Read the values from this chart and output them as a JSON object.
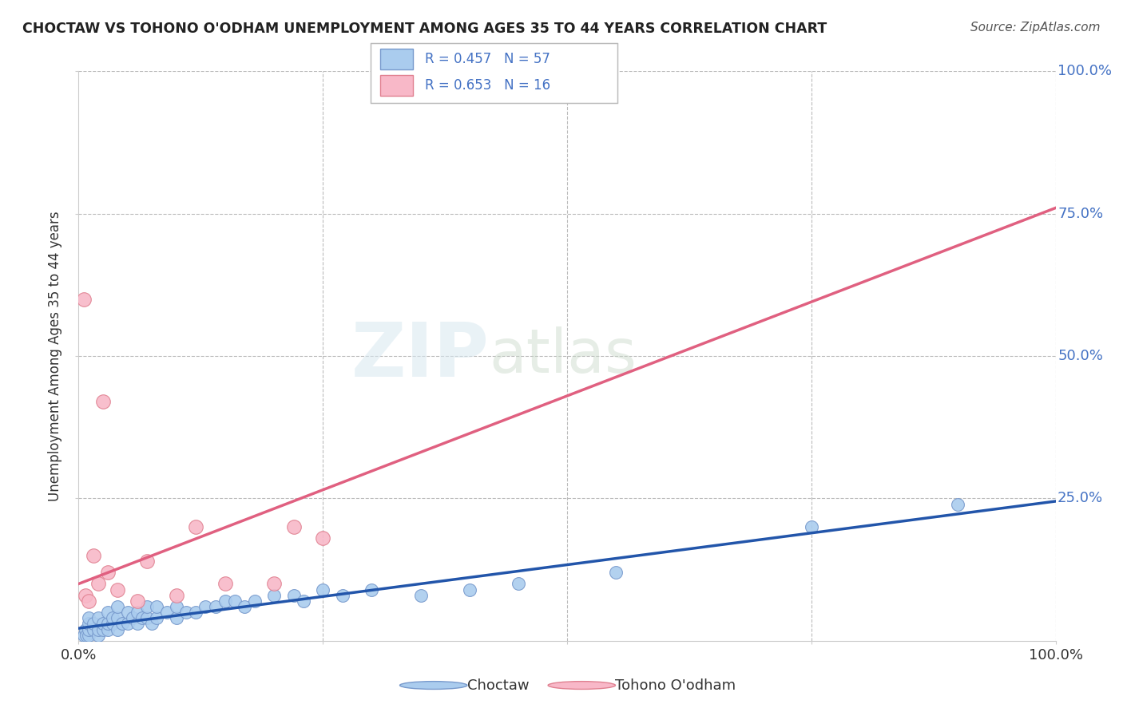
{
  "title": "CHOCTAW VS TOHONO O'ODHAM UNEMPLOYMENT AMONG AGES 35 TO 44 YEARS CORRELATION CHART",
  "source": "Source: ZipAtlas.com",
  "ylabel": "Unemployment Among Ages 35 to 44 years",
  "xlim": [
    0.0,
    1.0
  ],
  "ylim": [
    0.0,
    1.0
  ],
  "choctaw_color": "#aaccee",
  "choctaw_edge": "#7799cc",
  "tohono_color": "#f8b8c8",
  "tohono_edge": "#e08090",
  "choctaw_line_color": "#2255aa",
  "tohono_line_color": "#e06080",
  "choctaw_R": 0.457,
  "choctaw_N": 57,
  "tohono_R": 0.653,
  "tohono_N": 16,
  "legend_label_choctaw": "Choctaw",
  "legend_label_tohono": "Tohono O'odham",
  "watermark_zip": "ZIP",
  "watermark_atlas": "atlas",
  "background_color": "#ffffff",
  "grid_color": "#bbbbbb",
  "title_color": "#222222",
  "source_color": "#555555",
  "tick_color": "#4472c4",
  "ylabel_color": "#333333",
  "choctaw_x": [
    0.005,
    0.007,
    0.008,
    0.01,
    0.01,
    0.01,
    0.01,
    0.015,
    0.015,
    0.02,
    0.02,
    0.02,
    0.025,
    0.025,
    0.03,
    0.03,
    0.03,
    0.035,
    0.035,
    0.04,
    0.04,
    0.04,
    0.045,
    0.05,
    0.05,
    0.055,
    0.06,
    0.06,
    0.065,
    0.07,
    0.07,
    0.075,
    0.08,
    0.08,
    0.09,
    0.1,
    0.1,
    0.11,
    0.12,
    0.13,
    0.14,
    0.15,
    0.16,
    0.17,
    0.18,
    0.2,
    0.22,
    0.23,
    0.25,
    0.27,
    0.3,
    0.35,
    0.4,
    0.45,
    0.55,
    0.75,
    0.9
  ],
  "choctaw_y": [
    0.01,
    0.02,
    0.01,
    0.01,
    0.02,
    0.03,
    0.04,
    0.02,
    0.03,
    0.01,
    0.02,
    0.04,
    0.02,
    0.03,
    0.02,
    0.03,
    0.05,
    0.03,
    0.04,
    0.02,
    0.04,
    0.06,
    0.03,
    0.03,
    0.05,
    0.04,
    0.03,
    0.05,
    0.04,
    0.04,
    0.06,
    0.03,
    0.04,
    0.06,
    0.05,
    0.04,
    0.06,
    0.05,
    0.05,
    0.06,
    0.06,
    0.07,
    0.07,
    0.06,
    0.07,
    0.08,
    0.08,
    0.07,
    0.09,
    0.08,
    0.09,
    0.08,
    0.09,
    0.1,
    0.12,
    0.2,
    0.24
  ],
  "tohono_x": [
    0.005,
    0.007,
    0.01,
    0.015,
    0.02,
    0.025,
    0.03,
    0.04,
    0.06,
    0.07,
    0.1,
    0.12,
    0.15,
    0.2,
    0.22,
    0.25
  ],
  "tohono_y": [
    0.6,
    0.08,
    0.07,
    0.15,
    0.1,
    0.42,
    0.12,
    0.09,
    0.07,
    0.14,
    0.08,
    0.2,
    0.1,
    0.1,
    0.2,
    0.18
  ],
  "tohono_line_x0": 0.0,
  "tohono_line_y0": 0.1,
  "tohono_line_x1": 1.0,
  "tohono_line_y1": 0.76,
  "choctaw_line_x0": 0.0,
  "choctaw_line_y0": 0.022,
  "choctaw_line_x1": 1.0,
  "choctaw_line_y1": 0.245
}
